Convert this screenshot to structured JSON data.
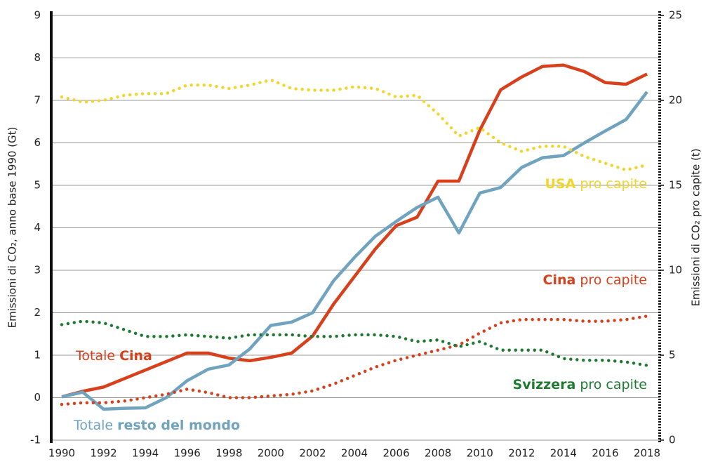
{
  "chart_data": {
    "type": "line",
    "ylabel": "Emissioni di CO₂, anno base 1990 (Gt)",
    "y2label": "Emissioni di CO₂ pro capite (t)",
    "x": [
      1990,
      1991,
      1992,
      1993,
      1994,
      1995,
      1996,
      1997,
      1998,
      1999,
      2000,
      2001,
      2002,
      2003,
      2004,
      2005,
      2006,
      2007,
      2008,
      2009,
      2010,
      2011,
      2012,
      2013,
      2014,
      2015,
      2016,
      2017,
      2018
    ],
    "xlim": [
      1990,
      2018
    ],
    "xticks": [
      1990,
      1992,
      1994,
      1996,
      1998,
      2000,
      2002,
      2004,
      2006,
      2008,
      2010,
      2012,
      2014,
      2016,
      2018
    ],
    "ylim": [
      -1,
      9
    ],
    "yticks": [
      -1,
      0,
      1,
      2,
      3,
      4,
      5,
      6,
      7,
      8,
      9
    ],
    "y2lim": [
      0,
      25
    ],
    "y2ticks": [
      0,
      5,
      10,
      15,
      20,
      25
    ],
    "grid": true,
    "series": [
      {
        "label_parts": [
          {
            "text": "Totale",
            "bold": false
          },
          {
            "text": "Cina",
            "bold": true
          }
        ],
        "color": "#d8401c",
        "style": "solid",
        "values": [
          0.02,
          0.15,
          0.25,
          0.45,
          0.65,
          0.85,
          1.05,
          1.05,
          0.93,
          0.87,
          0.95,
          1.05,
          1.45,
          2.2,
          2.85,
          3.5,
          4.05,
          4.25,
          5.1,
          5.1,
          6.3,
          7.25,
          7.55,
          7.8,
          7.83,
          7.68,
          7.42,
          7.38,
          7.62
        ]
      },
      {
        "label_parts": [
          {
            "text": "Totale",
            "bold": false
          },
          {
            "text": "resto del mondo",
            "bold": true
          }
        ],
        "color": "#6fa3bf",
        "style": "solid",
        "values": [
          0.02,
          0.13,
          -0.27,
          -0.25,
          -0.24,
          0.0,
          0.4,
          0.67,
          0.77,
          1.15,
          1.7,
          1.78,
          2.0,
          2.75,
          3.3,
          3.8,
          4.15,
          4.48,
          4.72,
          3.88,
          4.82,
          4.95,
          5.42,
          5.65,
          5.7,
          6.0,
          6.28,
          6.55,
          7.2
        ]
      },
      {
        "label_parts": [
          {
            "text": "USA",
            "bold": true
          },
          {
            "text": "pro capite",
            "bold": false
          }
        ],
        "color": "#f2d52a",
        "style": "dotted",
        "axis": "y2",
        "values": [
          20.2,
          19.9,
          20.0,
          20.3,
          20.4,
          20.4,
          20.9,
          20.9,
          20.7,
          20.9,
          21.2,
          20.7,
          20.6,
          20.6,
          20.8,
          20.7,
          20.2,
          20.3,
          19.2,
          17.9,
          18.4,
          17.5,
          17.0,
          17.3,
          17.3,
          16.7,
          16.3,
          15.9,
          16.2
        ]
      },
      {
        "label_parts": [
          {
            "text": "Cina",
            "bold": true
          },
          {
            "text": "pro capite",
            "bold": false
          }
        ],
        "color": "#d8401c",
        "style": "dotted",
        "axis": "y2",
        "values": [
          2.1,
          2.2,
          2.2,
          2.3,
          2.5,
          2.7,
          3.0,
          2.8,
          2.5,
          2.5,
          2.6,
          2.7,
          2.9,
          3.3,
          3.8,
          4.3,
          4.7,
          5.0,
          5.3,
          5.6,
          6.3,
          6.9,
          7.1,
          7.1,
          7.1,
          7.0,
          7.0,
          7.1,
          7.3
        ]
      },
      {
        "label_parts": [
          {
            "text": "Svizzera",
            "bold": true
          },
          {
            "text": "pro capite",
            "bold": false
          }
        ],
        "color": "#1e7a31",
        "style": "dotted",
        "axis": "y2",
        "values": [
          6.8,
          7.0,
          6.9,
          6.5,
          6.1,
          6.1,
          6.2,
          6.1,
          6.0,
          6.2,
          6.2,
          6.2,
          6.1,
          6.1,
          6.2,
          6.2,
          6.1,
          5.8,
          5.9,
          5.5,
          5.8,
          5.3,
          5.3,
          5.3,
          4.8,
          4.7,
          4.7,
          4.6,
          4.4
        ]
      }
    ]
  }
}
